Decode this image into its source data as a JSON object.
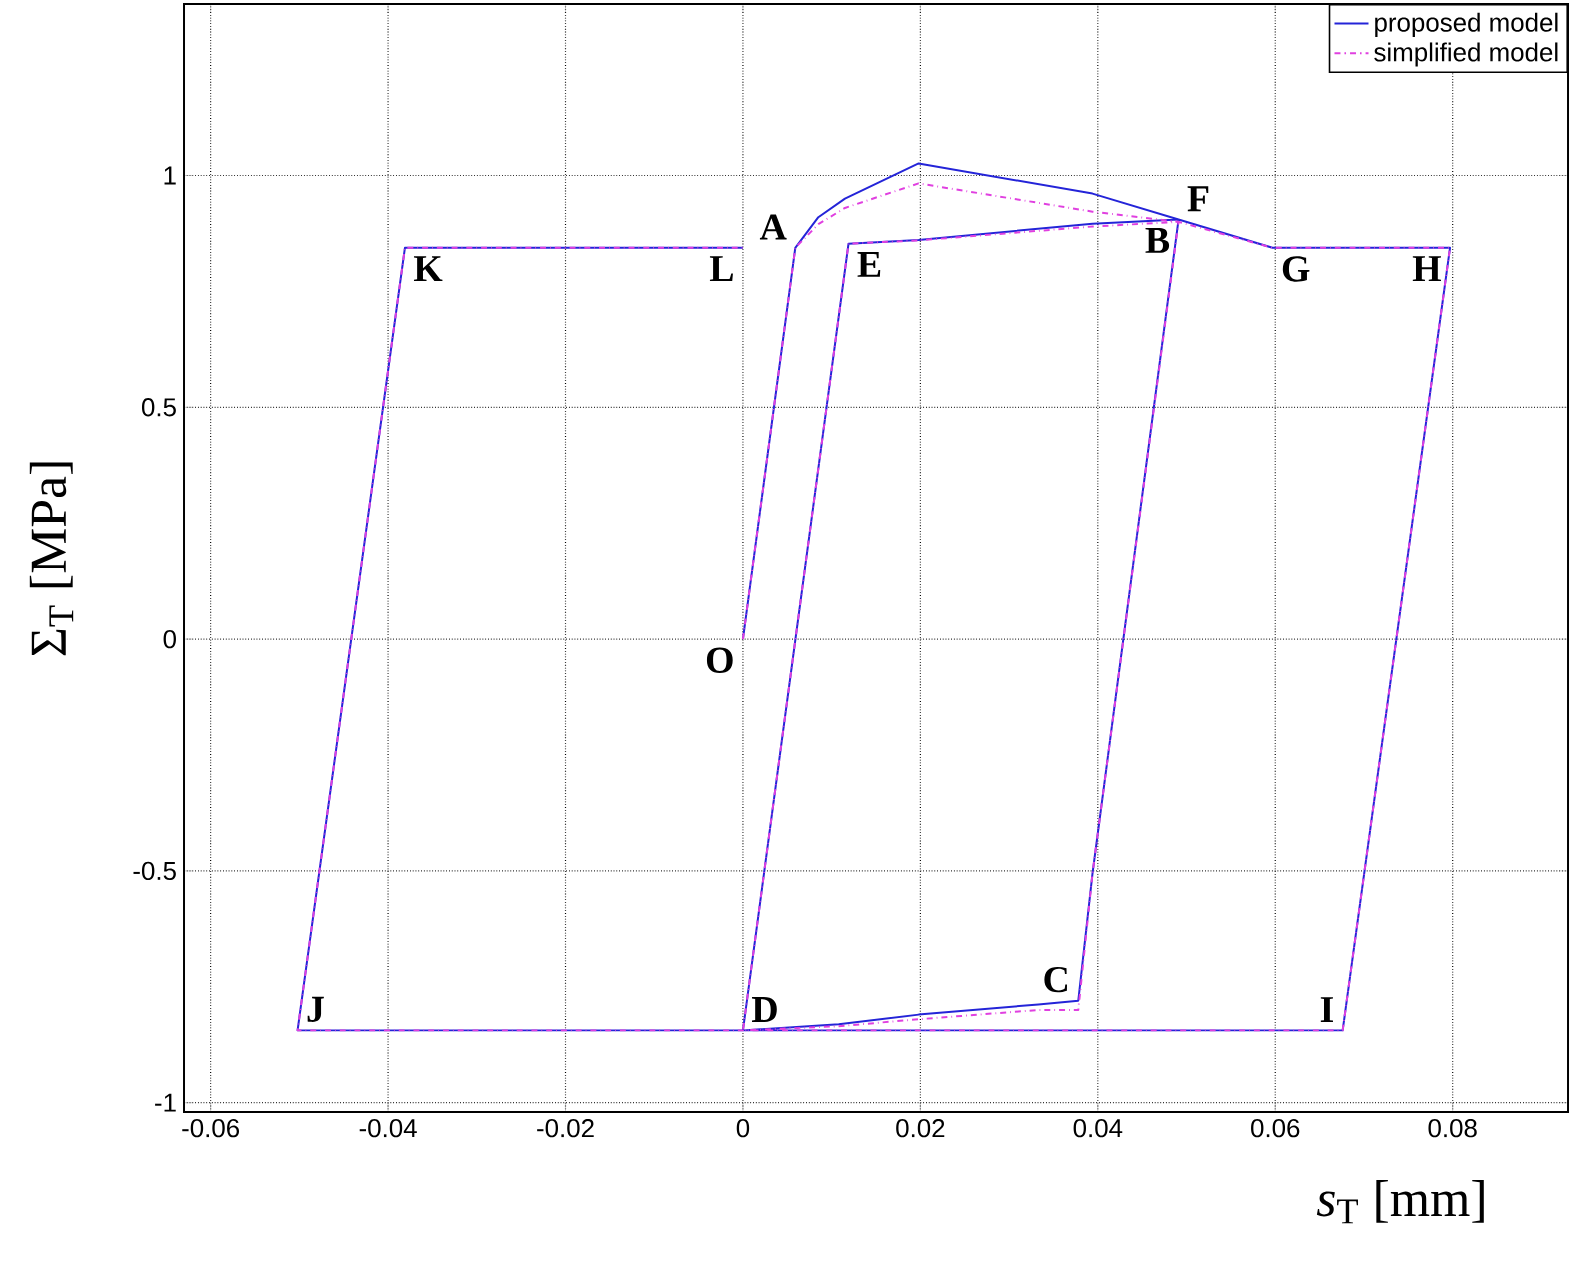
{
  "chart_data": {
    "type": "line",
    "xlabel": "*s*$_{T}$ [mm]",
    "ylabel": "Σ$_{T}$ [MPa]",
    "xlim": [
      -0.063,
      0.093
    ],
    "ylim": [
      -1.02,
      1.37
    ],
    "xticks": [
      -0.06,
      -0.04,
      -0.02,
      0,
      0.02,
      0.04,
      0.06,
      0.08
    ],
    "yticks": [
      -1,
      -0.5,
      0,
      0.5,
      1
    ],
    "grid": true,
    "legend": "top right",
    "series": [
      {
        "name": "proposed model",
        "color": "#2424d8",
        "line_style": "solid",
        "x": [
          0,
          0.0059,
          0.0085,
          0.0115,
          0.0198,
          0.0394,
          0.0491,
          0.0394,
          0.0378,
          0.0333,
          0.0198,
          0.0108,
          0,
          0.0119,
          0.0198,
          0.0394,
          0.0491,
          0.0597,
          0.0797,
          0.0676,
          -0.0502,
          -0.0381,
          0
        ],
        "values": [
          0,
          0.844,
          0.91,
          0.95,
          1.026,
          0.961,
          0.905,
          -0.506,
          -0.78,
          -0.788,
          -0.81,
          -0.831,
          -0.844,
          0.853,
          0.861,
          0.896,
          0.905,
          0.844,
          0.844,
          -0.844,
          -0.844,
          0.844,
          0.844
        ]
      },
      {
        "name": "simplified model",
        "color": "#e040e0",
        "line_style": "dashed",
        "x": [
          0,
          0.0059,
          0.0085,
          0.0115,
          0.0198,
          0.0394,
          0.0491,
          0.0394,
          0.0378,
          0.0333,
          0.0198,
          0.0108,
          0,
          0.0119,
          0.0198,
          0.0394,
          0.0491,
          0.0597,
          0.0797,
          0.0676,
          -0.0502,
          -0.0381,
          0
        ],
        "values": [
          0,
          0.844,
          0.895,
          0.93,
          0.983,
          0.922,
          0.9,
          -0.506,
          -0.8,
          -0.8,
          -0.82,
          -0.835,
          -0.844,
          0.853,
          0.86,
          0.89,
          0.9,
          0.844,
          0.844,
          -0.844,
          -0.844,
          0.844,
          0.844
        ]
      }
    ],
    "annotations": [
      {
        "text": "A",
        "x": 0.0059,
        "y": 0.844
      },
      {
        "text": "K",
        "x": -0.0381,
        "y": 0.844
      },
      {
        "text": "L",
        "x": 0,
        "y": 0.844
      },
      {
        "text": "E",
        "x": 0.0119,
        "y": 0.853
      },
      {
        "text": "B",
        "x": 0.0491,
        "y": 0.905
      },
      {
        "text": "F",
        "x": 0.0491,
        "y": 0.905
      },
      {
        "text": "G",
        "x": 0.0597,
        "y": 0.844
      },
      {
        "text": "H",
        "x": 0.0797,
        "y": 0.844
      },
      {
        "text": "O",
        "x": 0,
        "y": 0
      },
      {
        "text": "D",
        "x": 0,
        "y": -0.844
      },
      {
        "text": "C",
        "x": 0.0378,
        "y": -0.78
      },
      {
        "text": "I",
        "x": 0.0676,
        "y": -0.844
      },
      {
        "text": "J",
        "x": -0.0502,
        "y": -0.844
      }
    ]
  }
}
